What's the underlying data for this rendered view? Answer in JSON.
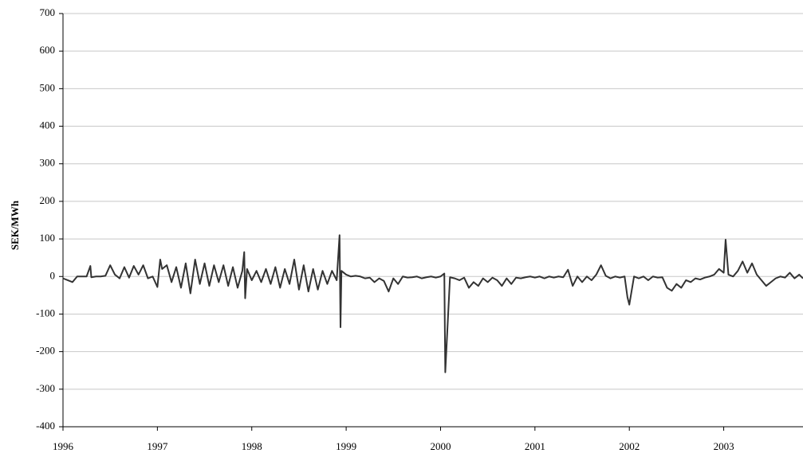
{
  "chart_data": {
    "type": "line",
    "ylabel": "SEK/MWh",
    "xlim": [
      1996,
      2003.84
    ],
    "xticks": [
      1996,
      1997,
      1998,
      1999,
      2000,
      2001,
      2002,
      2003
    ],
    "ylim": [
      -400,
      700
    ],
    "yticks": [
      -400,
      -300,
      -200,
      -100,
      0,
      100,
      200,
      300,
      400,
      500,
      600,
      700
    ],
    "grid": true,
    "x": [
      1996.0,
      1996.05,
      1996.1,
      1996.15,
      1996.2,
      1996.25,
      1996.29,
      1996.3,
      1996.35,
      1996.4,
      1996.45,
      1996.5,
      1996.55,
      1996.6,
      1996.65,
      1996.7,
      1996.75,
      1996.8,
      1996.85,
      1996.9,
      1996.95,
      1997.0,
      1997.03,
      1997.05,
      1997.1,
      1997.15,
      1997.2,
      1997.25,
      1997.3,
      1997.35,
      1997.4,
      1997.45,
      1997.5,
      1997.55,
      1997.6,
      1997.65,
      1997.7,
      1997.75,
      1997.8,
      1997.85,
      1997.9,
      1997.92,
      1997.93,
      1997.95,
      1998.0,
      1998.05,
      1998.1,
      1998.15,
      1998.2,
      1998.25,
      1998.3,
      1998.35,
      1998.4,
      1998.45,
      1998.5,
      1998.55,
      1998.6,
      1998.65,
      1998.7,
      1998.75,
      1998.8,
      1998.85,
      1998.9,
      1998.93,
      1998.94,
      1998.95,
      1999.0,
      1999.05,
      1999.1,
      1999.15,
      1999.2,
      1999.25,
      1999.3,
      1999.35,
      1999.4,
      1999.45,
      1999.5,
      1999.55,
      1999.6,
      1999.65,
      1999.7,
      1999.75,
      1999.8,
      1999.85,
      1999.9,
      1999.95,
      2000.0,
      2000.04,
      2000.05,
      2000.1,
      2000.15,
      2000.2,
      2000.25,
      2000.3,
      2000.35,
      2000.4,
      2000.45,
      2000.5,
      2000.55,
      2000.6,
      2000.65,
      2000.7,
      2000.75,
      2000.8,
      2000.85,
      2000.9,
      2000.95,
      2001.0,
      2001.05,
      2001.1,
      2001.15,
      2001.2,
      2001.25,
      2001.3,
      2001.35,
      2001.4,
      2001.45,
      2001.5,
      2001.55,
      2001.6,
      2001.65,
      2001.7,
      2001.75,
      2001.8,
      2001.85,
      2001.9,
      2001.95,
      2001.98,
      2002.0,
      2002.05,
      2002.1,
      2002.15,
      2002.2,
      2002.25,
      2002.3,
      2002.35,
      2002.4,
      2002.45,
      2002.5,
      2002.55,
      2002.6,
      2002.65,
      2002.7,
      2002.75,
      2002.8,
      2002.85,
      2002.9,
      2002.95,
      2003.0,
      2003.02,
      2003.05,
      2003.1,
      2003.15,
      2003.2,
      2003.25,
      2003.3,
      2003.35,
      2003.4,
      2003.45,
      2003.5,
      2003.55,
      2003.6,
      2003.65,
      2003.7,
      2003.75,
      2003.8,
      2003.84
    ],
    "series": [
      {
        "color": "#333333",
        "values": [
          -5,
          -10,
          -15,
          0,
          0,
          0,
          28,
          -2,
          0,
          0,
          2,
          30,
          5,
          -5,
          25,
          -3,
          28,
          5,
          30,
          -5,
          0,
          -28,
          45,
          20,
          30,
          -15,
          25,
          -30,
          35,
          -45,
          45,
          -20,
          35,
          -25,
          30,
          -15,
          30,
          -25,
          25,
          -30,
          15,
          65,
          -58,
          20,
          -10,
          15,
          -15,
          20,
          -20,
          25,
          -30,
          20,
          -20,
          45,
          -35,
          30,
          -40,
          20,
          -35,
          15,
          -20,
          15,
          -10,
          110,
          -135,
          15,
          5,
          0,
          2,
          0,
          -5,
          -3,
          -15,
          -5,
          -12,
          -40,
          -5,
          -20,
          0,
          -3,
          -2,
          0,
          -5,
          -2,
          0,
          -3,
          0,
          8,
          -255,
          -2,
          -5,
          -10,
          -3,
          -30,
          -15,
          -25,
          -5,
          -15,
          -3,
          -10,
          -25,
          -5,
          -20,
          -3,
          -5,
          -2,
          0,
          -3,
          0,
          -5,
          0,
          -3,
          0,
          -2,
          18,
          -25,
          0,
          -15,
          0,
          -10,
          5,
          30,
          2,
          -5,
          0,
          -3,
          0,
          -55,
          -75,
          0,
          -5,
          0,
          -10,
          0,
          -3,
          -2,
          -30,
          -38,
          -20,
          -30,
          -10,
          -15,
          -5,
          -8,
          -3,
          0,
          5,
          20,
          10,
          98,
          5,
          0,
          15,
          40,
          10,
          35,
          5,
          -10,
          -25,
          -15,
          -5,
          0,
          -3,
          10,
          -5,
          5,
          -5
        ]
      }
    ]
  }
}
